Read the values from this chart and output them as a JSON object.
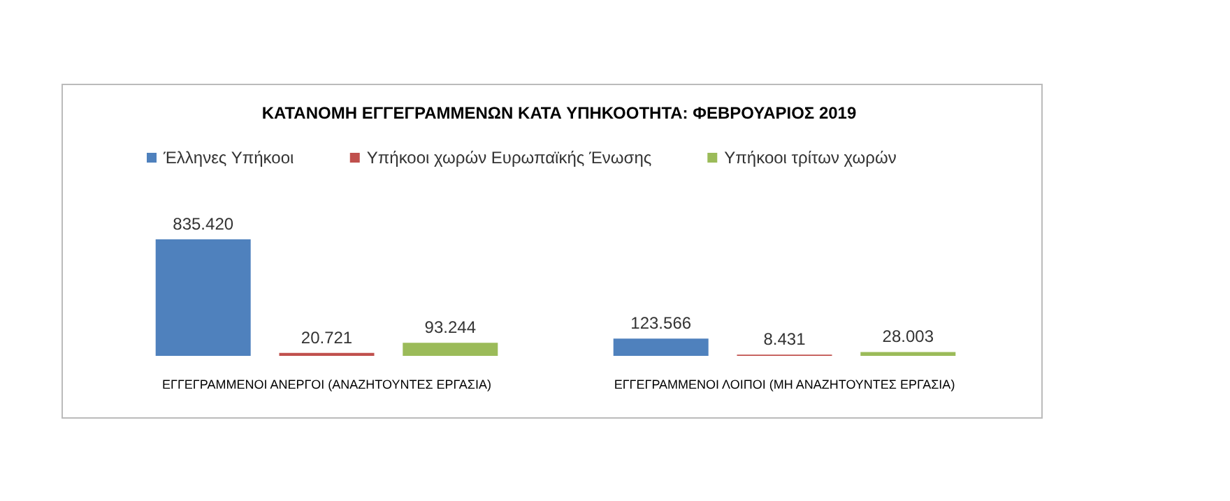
{
  "chart_data": {
    "type": "bar",
    "title": "ΚΑΤΑΝΟΜΗ ΕΓΓΕΓΡΑΜΜΕΝΩΝ ΚΑΤΑ ΥΠΗΚΟΟΤΗΤΑ: ΦΕΒΡΟΥΑΡΙΟΣ 2019",
    "categories": [
      "ΕΓΓΕΓΡΑΜΜΕΝΟΙ ΑΝΕΡΓΟΙ (ΑΝΑΖΗΤΟΥΝΤΕΣ ΕΡΓΑΣΙΑ)",
      "ΕΓΓΕΓΡΑΜΜΕΝΟΙ ΛΟΙΠΟΙ (ΜΗ ΑΝΑΖΗΤΟΥΝΤΕΣ ΕΡΓΑΣΙΑ)"
    ],
    "series": [
      {
        "name": "Έλληνες Υπήκοοι",
        "color": "#4f81bd",
        "values": [
          835420,
          123566
        ],
        "value_labels": [
          "835.420",
          "123.566"
        ]
      },
      {
        "name": "Υπήκοοι χωρών Ευρωπαϊκής Ένωσης",
        "color": "#c0504d",
        "values": [
          20721,
          8431
        ],
        "value_labels": [
          "20.721",
          "8.431"
        ]
      },
      {
        "name": "Υπήκοοι τρίτων χωρών",
        "color": "#9bbb59",
        "values": [
          93244,
          28003
        ],
        "value_labels": [
          "93.244",
          "28.003"
        ]
      }
    ],
    "legend": "top left"
  }
}
